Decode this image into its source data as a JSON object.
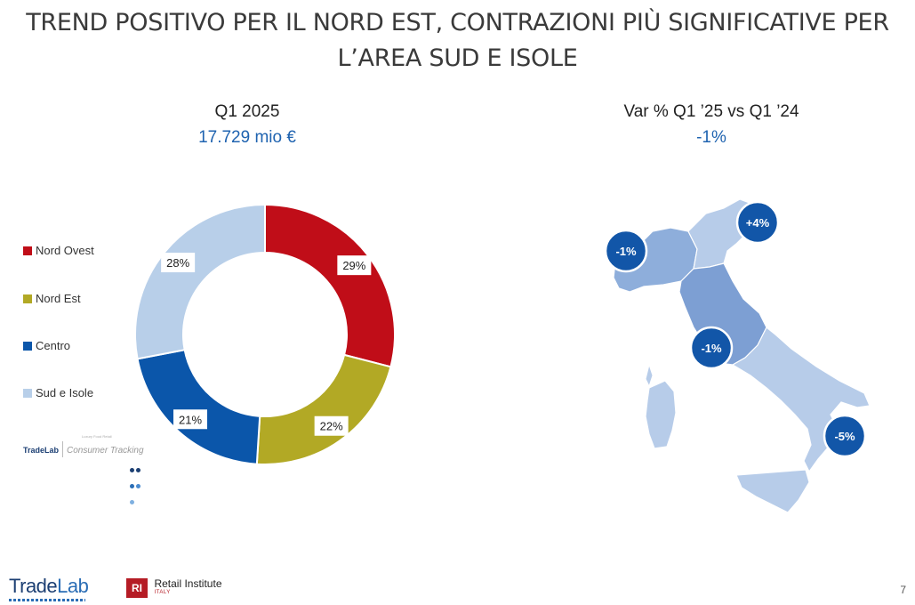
{
  "title": {
    "line1": "TREND POSITIVO PER IL NORD EST, CONTRAZIONI PIÙ SIGNIFICATIVE PER",
    "line2": "L’AREA SUD E ISOLE"
  },
  "left_header": {
    "label": "Q1 2025",
    "value": "17.729 mio €"
  },
  "right_header": {
    "label": "Var % Q1 ’25 vs Q1 ’24",
    "value": "-1%"
  },
  "chart_data": {
    "type": "pie",
    "variant": "donut",
    "categories": [
      "Nord Ovest",
      "Nord Est",
      "Centro",
      "Sud e Isole"
    ],
    "values": [
      29,
      22,
      21,
      28
    ],
    "labels": [
      "29%",
      "22%",
      "21%",
      "28%"
    ],
    "colors": [
      "#c00d18",
      "#b2a925",
      "#0b56aa",
      "#b8cfe9"
    ],
    "legend": "left"
  },
  "map": {
    "badges": [
      {
        "region": "Nord Ovest",
        "value": "-1%"
      },
      {
        "region": "Nord Est",
        "value": "+4%"
      },
      {
        "region": "Centro",
        "value": "-1%"
      },
      {
        "region": "Sud e Isole",
        "value": "-5%"
      }
    ],
    "badge_color": "#1256a8"
  },
  "source_logo": {
    "name": "TradeLab",
    "product": "Consumer Tracking",
    "tagline": "Luxury Food Retail"
  },
  "footer": {
    "tradelab": {
      "part1": "Trade",
      "part2": "Lab"
    },
    "retail_institute": {
      "mark": "RI",
      "name": "Retail Institute",
      "sub": "ITALY"
    },
    "page_number": "7"
  }
}
